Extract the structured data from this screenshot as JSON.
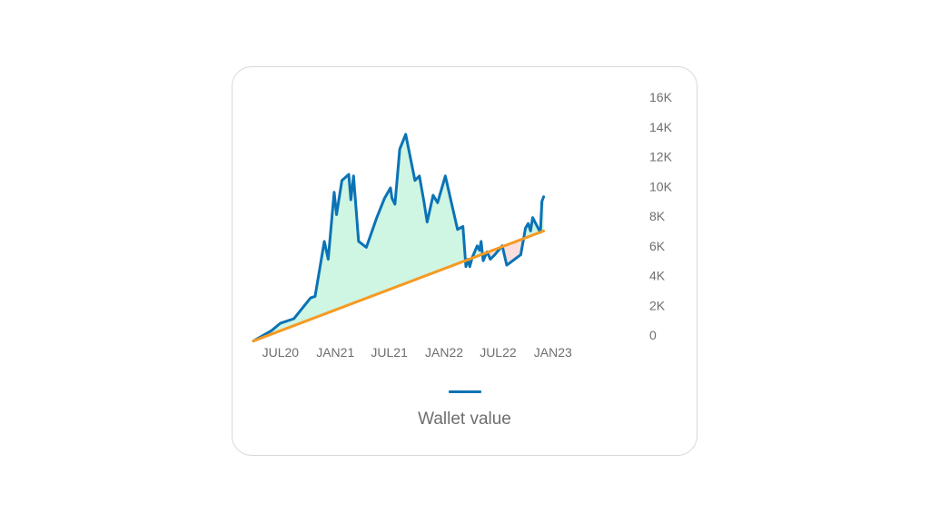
{
  "colors": {
    "wallet_line": "#0b73b5",
    "cost_line": "#f59a23",
    "profit_fill": "#cff5e3",
    "loss_fill": "#fbdede"
  },
  "legend": {
    "label": "Wallet value",
    "placement": "bottom-center"
  },
  "chart_data": {
    "type": "line",
    "grid": false,
    "x_axis": {
      "type": "date",
      "range": [
        "2020-04-01",
        "2023-10-15"
      ],
      "tick_labels": [
        "JUL20",
        "JAN21",
        "JUL21",
        "JAN22",
        "JUL22",
        "JAN23"
      ],
      "tick_dates": [
        "2020-07-01",
        "2021-01-01",
        "2021-07-01",
        "2022-01-01",
        "2022-07-01",
        "2023-01-01"
      ]
    },
    "y_axis": {
      "range": [
        0,
        16000
      ],
      "position": "right",
      "tick_values": [
        0,
        2000,
        4000,
        6000,
        8000,
        10000,
        12000,
        14000,
        16000
      ],
      "tick_labels": [
        "0",
        "2K",
        "4K",
        "6K",
        "8K",
        "10K",
        "12K",
        "14K",
        "16K"
      ]
    },
    "series": [
      {
        "name": "Wallet value",
        "role": "value",
        "points": [
          [
            "2020-04-01",
            -400
          ],
          [
            "2020-06-01",
            300
          ],
          [
            "2020-07-01",
            800
          ],
          [
            "2020-08-15",
            1100
          ],
          [
            "2020-10-10",
            2500
          ],
          [
            "2020-10-25",
            2600
          ],
          [
            "2020-11-25",
            6300
          ],
          [
            "2020-12-08",
            5100
          ],
          [
            "2020-12-28",
            9600
          ],
          [
            "2021-01-05",
            8100
          ],
          [
            "2021-01-23",
            10400
          ],
          [
            "2021-02-15",
            10800
          ],
          [
            "2021-02-22",
            9100
          ],
          [
            "2021-03-03",
            10700
          ],
          [
            "2021-03-20",
            6300
          ],
          [
            "2021-04-15",
            5900
          ],
          [
            "2021-05-20",
            7900
          ],
          [
            "2021-06-15",
            9200
          ],
          [
            "2021-07-05",
            9900
          ],
          [
            "2021-07-10",
            9200
          ],
          [
            "2021-07-20",
            8800
          ],
          [
            "2021-08-05",
            12500
          ],
          [
            "2021-08-25",
            13500
          ],
          [
            "2021-09-25",
            10400
          ],
          [
            "2021-10-10",
            10700
          ],
          [
            "2021-10-25",
            9000
          ],
          [
            "2021-11-05",
            7600
          ],
          [
            "2021-11-25",
            9400
          ],
          [
            "2021-12-10",
            8900
          ],
          [
            "2022-01-05",
            10700
          ],
          [
            "2022-02-15",
            7100
          ],
          [
            "2022-03-05",
            7300
          ],
          [
            "2022-03-15",
            4600
          ],
          [
            "2022-03-22",
            5100
          ],
          [
            "2022-03-28",
            4600
          ],
          [
            "2022-04-05",
            5200
          ],
          [
            "2022-04-22",
            6000
          ],
          [
            "2022-04-30",
            5700
          ],
          [
            "2022-05-05",
            6300
          ],
          [
            "2022-05-12",
            5000
          ],
          [
            "2022-05-25",
            5600
          ],
          [
            "2022-06-05",
            5100
          ],
          [
            "2022-06-20",
            5400
          ],
          [
            "2022-07-15",
            6000
          ],
          [
            "2022-07-30",
            4700
          ],
          [
            "2022-09-15",
            5400
          ],
          [
            "2022-10-01",
            7200
          ],
          [
            "2022-10-10",
            7500
          ],
          [
            "2022-10-18",
            7000
          ],
          [
            "2022-10-25",
            7900
          ],
          [
            "2022-11-12",
            7200
          ],
          [
            "2022-11-20",
            6900
          ],
          [
            "2022-11-25",
            9000
          ],
          [
            "2022-12-01",
            9300
          ]
        ]
      },
      {
        "role": "cost_basis",
        "points": [
          [
            "2020-04-01",
            -400
          ],
          [
            "2022-12-01",
            7000
          ]
        ]
      }
    ]
  }
}
